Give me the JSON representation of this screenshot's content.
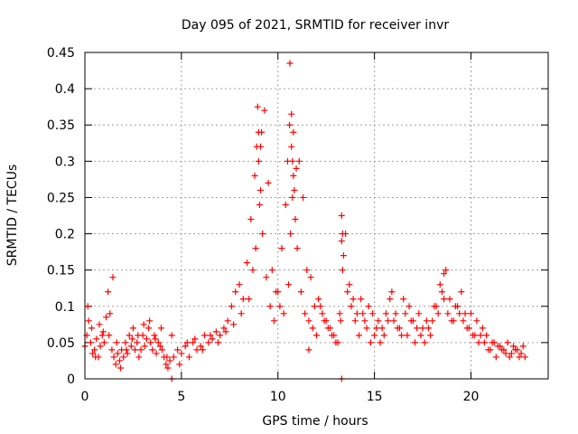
{
  "chart_data": {
    "type": "scatter",
    "title": "Day 095 of 2021, SRMTID for receiver invr",
    "xlabel": "GPS time / hours",
    "ylabel": "SRMTID / TECUs",
    "xlim": [
      0,
      24
    ],
    "ylim": [
      0,
      0.45
    ],
    "xticks": [
      0,
      5,
      10,
      15,
      20
    ],
    "xtick_labels": [
      "0",
      "5",
      "10",
      "15",
      "20"
    ],
    "yticks": [
      0,
      0.05,
      0.1,
      0.15,
      0.2,
      0.25,
      0.3,
      0.35,
      0.4,
      0.45
    ],
    "ytick_labels": [
      "0",
      "0.05",
      "0.1",
      "0.15",
      "0.2",
      "0.25",
      "0.3",
      "0.35",
      "0.4",
      "0.45"
    ],
    "grid": true,
    "marker": "+",
    "color": "#ff0000",
    "series": [
      {
        "name": "SRMTID",
        "x": [
          0.0,
          0.1,
          0.2,
          0.3,
          0.4,
          0.5,
          0.6,
          0.7,
          0.8,
          0.9,
          1.0,
          1.1,
          1.2,
          1.3,
          1.4,
          1.5,
          1.6,
          1.7,
          1.8,
          1.9,
          2.0,
          2.1,
          2.2,
          2.3,
          2.4,
          2.5,
          2.6,
          2.7,
          2.8,
          2.9,
          3.0,
          3.1,
          3.2,
          3.3,
          3.4,
          3.5,
          3.6,
          3.7,
          3.8,
          3.9,
          4.0,
          4.1,
          4.2,
          4.3,
          4.4,
          4.6,
          4.8,
          5.0,
          5.2,
          5.4,
          5.6,
          5.8,
          6.0,
          6.2,
          6.4,
          6.6,
          6.8,
          7.0,
          7.2,
          7.4,
          7.6,
          7.8,
          8.0,
          8.2,
          8.4,
          8.6,
          8.8,
          8.9,
          9.0,
          9.1,
          9.2,
          9.4,
          9.6,
          9.8,
          10.0,
          10.2,
          10.4,
          10.5,
          10.6,
          10.7,
          10.8,
          10.9,
          11.0,
          11.2,
          11.4,
          11.6,
          11.8,
          12.0,
          12.2,
          12.4,
          12.6,
          12.8,
          13.0,
          13.2,
          13.3,
          13.4,
          13.6,
          13.8,
          14.0,
          14.2,
          14.4,
          14.6,
          14.8,
          15.0,
          15.2,
          15.4,
          15.6,
          15.8,
          16.0,
          16.2,
          16.4,
          16.6,
          16.8,
          17.0,
          17.2,
          17.4,
          17.6,
          17.8,
          18.0,
          18.2,
          18.4,
          18.6,
          18.8,
          19.0,
          19.2,
          19.4,
          19.6,
          19.8,
          20.0,
          20.2,
          20.4,
          20.6,
          20.8,
          21.0,
          21.2,
          21.4,
          21.6,
          21.8,
          22.0,
          22.2,
          22.4,
          22.6,
          22.8,
          0.15,
          0.35,
          0.55,
          0.75,
          0.95,
          1.25,
          1.45,
          1.65,
          1.85,
          2.15,
          2.45,
          2.75,
          3.05,
          3.35,
          3.65,
          3.95,
          4.25,
          4.5,
          4.9,
          5.3,
          5.7,
          6.1,
          6.5,
          6.9,
          7.3,
          7.7,
          8.1,
          8.5,
          8.7,
          8.85,
          9.05,
          9.15,
          9.3,
          9.5,
          9.7,
          9.9,
          10.1,
          10.3,
          10.55,
          10.65,
          10.75,
          10.85,
          10.95,
          11.1,
          11.3,
          11.5,
          11.7,
          11.9,
          12.1,
          12.3,
          12.5,
          12.7,
          12.9,
          13.1,
          13.25,
          13.35,
          13.5,
          13.7,
          13.9,
          14.1,
          14.3,
          14.5,
          14.7,
          14.9,
          15.1,
          15.3,
          15.5,
          15.7,
          15.9,
          16.1,
          16.3,
          16.5,
          16.7,
          16.9,
          17.1,
          17.3,
          17.5,
          17.7,
          17.9,
          18.1,
          18.3,
          18.5,
          18.7,
          18.9,
          19.1,
          19.3,
          19.5,
          19.7,
          19.9,
          20.1,
          20.3,
          20.5,
          20.7,
          20.9,
          21.1,
          21.3,
          21.5,
          21.7,
          21.9,
          22.1,
          22.3,
          22.5,
          22.7,
          8.95,
          9.1,
          10.62,
          10.7,
          10.8,
          13.3,
          13.35,
          18.6,
          9.0,
          10.75,
          11.6,
          13.3,
          4.5
        ],
        "y": [
          0.045,
          0.06,
          0.08,
          0.05,
          0.035,
          0.04,
          0.055,
          0.03,
          0.045,
          0.06,
          0.05,
          0.085,
          0.12,
          0.09,
          0.04,
          0.03,
          0.02,
          0.035,
          0.025,
          0.04,
          0.03,
          0.05,
          0.035,
          0.06,
          0.045,
          0.07,
          0.04,
          0.05,
          0.03,
          0.04,
          0.06,
          0.045,
          0.055,
          0.07,
          0.05,
          0.04,
          0.06,
          0.035,
          0.05,
          0.045,
          0.04,
          0.03,
          0.02,
          0.015,
          0.025,
          0.03,
          0.04,
          0.035,
          0.045,
          0.03,
          0.05,
          0.04,
          0.045,
          0.06,
          0.05,
          0.055,
          0.065,
          0.06,
          0.07,
          0.08,
          0.1,
          0.12,
          0.13,
          0.11,
          0.16,
          0.22,
          0.28,
          0.32,
          0.3,
          0.26,
          0.2,
          0.14,
          0.1,
          0.08,
          0.12,
          0.18,
          0.24,
          0.3,
          0.35,
          0.32,
          0.28,
          0.22,
          0.18,
          0.12,
          0.09,
          0.08,
          0.07,
          0.06,
          0.1,
          0.08,
          0.07,
          0.06,
          0.05,
          0.09,
          0.19,
          0.17,
          0.12,
          0.1,
          0.08,
          0.06,
          0.09,
          0.07,
          0.05,
          0.06,
          0.08,
          0.07,
          0.09,
          0.11,
          0.08,
          0.07,
          0.06,
          0.09,
          0.1,
          0.08,
          0.07,
          0.06,
          0.05,
          0.07,
          0.08,
          0.1,
          0.13,
          0.11,
          0.09,
          0.08,
          0.1,
          0.09,
          0.08,
          0.07,
          0.09,
          0.06,
          0.05,
          0.07,
          0.06,
          0.04,
          0.05,
          0.045,
          0.04,
          0.035,
          0.03,
          0.045,
          0.04,
          0.035,
          0.03,
          0.1,
          0.07,
          0.03,
          0.075,
          0.065,
          0.06,
          0.14,
          0.05,
          0.015,
          0.04,
          0.055,
          0.06,
          0.075,
          0.08,
          0.055,
          0.07,
          0.03,
          0.06,
          0.02,
          0.05,
          0.055,
          0.04,
          0.06,
          0.05,
          0.065,
          0.075,
          0.09,
          0.11,
          0.15,
          0.18,
          0.24,
          0.34,
          0.37,
          0.27,
          0.15,
          0.12,
          0.1,
          0.09,
          0.13,
          0.2,
          0.25,
          0.26,
          0.29,
          0.3,
          0.25,
          0.15,
          0.14,
          0.1,
          0.11,
          0.09,
          0.08,
          0.07,
          0.06,
          0.05,
          0.08,
          0.15,
          0.2,
          0.13,
          0.11,
          0.09,
          0.11,
          0.08,
          0.1,
          0.09,
          0.07,
          0.05,
          0.06,
          0.08,
          0.12,
          0.09,
          0.07,
          0.11,
          0.06,
          0.08,
          0.05,
          0.09,
          0.07,
          0.08,
          0.06,
          0.1,
          0.09,
          0.12,
          0.15,
          0.11,
          0.08,
          0.1,
          0.12,
          0.09,
          0.07,
          0.06,
          0.08,
          0.06,
          0.05,
          0.04,
          0.05,
          0.03,
          0.045,
          0.04,
          0.05,
          0.035,
          0.04,
          0.03,
          0.045,
          0.375,
          0.32,
          0.435,
          0.365,
          0.34,
          0.225,
          0.2,
          0.145,
          0.34,
          0.3,
          0.04,
          0.0,
          0.0
        ]
      }
    ]
  }
}
